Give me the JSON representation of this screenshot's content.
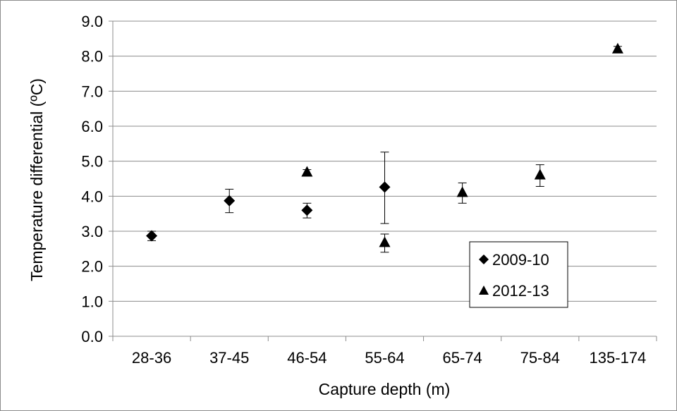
{
  "chart_data": {
    "type": "scatter",
    "xlabel": "Capture depth (m)",
    "ylabel": "Temperature differential (ºC)",
    "categories": [
      "28-36",
      "37-45",
      "46-54",
      "55-64",
      "65-74",
      "75-84",
      "135-174"
    ],
    "ylim": [
      0,
      9
    ],
    "yticks": [
      "0.0",
      "1.0",
      "2.0",
      "3.0",
      "4.0",
      "5.0",
      "6.0",
      "7.0",
      "8.0",
      "9.0"
    ],
    "grid": "horizontal",
    "legend_position": "bottom-right",
    "series": [
      {
        "name": "2009-10",
        "marker": "diamond",
        "points": [
          {
            "category": "28-36",
            "y": 2.87,
            "err_low": 2.73,
            "err_high": 3.0
          },
          {
            "category": "37-45",
            "y": 3.87,
            "err_low": 3.53,
            "err_high": 4.2
          },
          {
            "category": "46-54",
            "y": 3.6,
            "err_low": 3.38,
            "err_high": 3.8
          },
          {
            "category": "55-64",
            "y": 4.26,
            "err_low": 3.22,
            "err_high": 5.26
          }
        ]
      },
      {
        "name": "2012-13",
        "marker": "triangle",
        "points": [
          {
            "category": "46-54",
            "y": 4.68,
            "err_low": 4.6,
            "err_high": 4.76
          },
          {
            "category": "55-64",
            "y": 2.67,
            "err_low": 2.4,
            "err_high": 2.92
          },
          {
            "category": "65-74",
            "y": 4.1,
            "err_low": 3.8,
            "err_high": 4.38
          },
          {
            "category": "75-84",
            "y": 4.6,
            "err_low": 4.28,
            "err_high": 4.9
          },
          {
            "category": "135-174",
            "y": 8.2,
            "err_low": 8.12,
            "err_high": 8.28
          }
        ]
      }
    ],
    "colors": {
      "marker": "#000000",
      "grid": "#8c8c8c",
      "axis": "#8c8c8c"
    }
  }
}
